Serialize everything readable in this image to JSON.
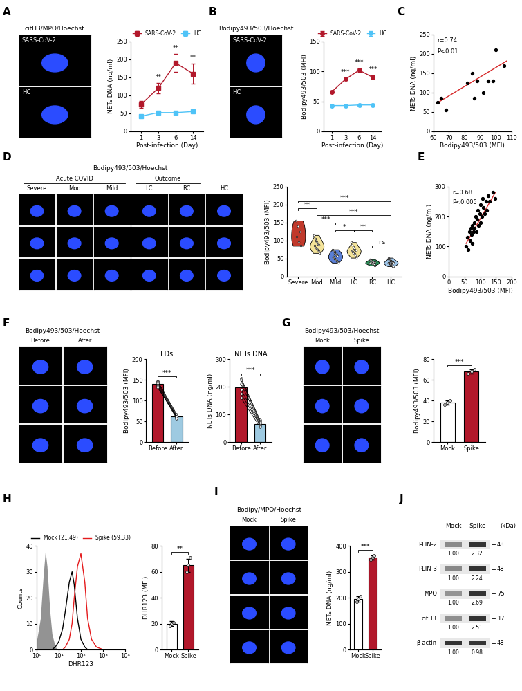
{
  "chart_data": [
    {
      "type": "image",
      "panel": "A",
      "title": "citH3/MPO/Hoechst",
      "labels": [
        "SARS-CoV-2",
        "HC"
      ]
    },
    {
      "type": "line",
      "categories": [
        "1",
        "3",
        "6",
        "14"
      ],
      "xlabel": "Post-infection (Day)",
      "ylabel": "NETs DNA (ng/ml)",
      "ylim": [
        0,
        250
      ],
      "yticks": [
        0,
        50,
        100,
        150,
        200,
        250
      ],
      "legend": "upper center",
      "series": [
        {
          "name": "SARS-CoV-2",
          "color": "#b2182b",
          "marker": "square",
          "values": [
            75,
            120,
            190,
            160
          ],
          "errors": [
            10,
            15,
            25,
            28
          ]
        },
        {
          "name": "HC",
          "color": "#4fc3f7",
          "marker": "square",
          "values": [
            42,
            52,
            52,
            55
          ],
          "errors": [
            4,
            3,
            3,
            3
          ]
        }
      ],
      "annotations": [
        {
          "x": "3",
          "text": "**"
        },
        {
          "x": "6",
          "text": "**"
        },
        {
          "x": "14",
          "text": "**"
        }
      ]
    },
    {
      "type": "image",
      "panel": "B",
      "title": "Bodipy493/503/Hoechst",
      "labels": [
        "SARS-CoV-2",
        "HC"
      ]
    },
    {
      "type": "line",
      "categories": [
        "1",
        "3",
        "6",
        "14"
      ],
      "xlabel": "Post-infection (Day)",
      "ylabel": "Bodipy493/503 (MFI)",
      "ylim": [
        0,
        150
      ],
      "yticks": [
        0,
        50,
        100,
        150
      ],
      "legend": "upper center",
      "series": [
        {
          "name": "SARS-CoV-2",
          "color": "#b2182b",
          "marker": "circle",
          "values": [
            66,
            87,
            102,
            90
          ],
          "errors": [
            2,
            2,
            3,
            3
          ]
        },
        {
          "name": "HC",
          "color": "#4fc3f7",
          "marker": "circle",
          "values": [
            43,
            43,
            44,
            44
          ],
          "errors": [
            1,
            1,
            1,
            2
          ]
        }
      ],
      "annotations": [
        {
          "x": "3",
          "text": "***"
        },
        {
          "x": "6",
          "text": "***"
        },
        {
          "x": "14",
          "text": "***"
        }
      ]
    },
    {
      "type": "scatter",
      "panel": "C",
      "x": [
        63,
        65,
        68,
        82,
        85,
        86,
        88,
        92,
        95,
        98,
        100,
        105
      ],
      "values": [
        75,
        85,
        55,
        125,
        150,
        85,
        130,
        100,
        130,
        130,
        210,
        170
      ],
      "color": "#000000",
      "trend": {
        "x": [
          62,
          107
        ],
        "y": [
          72,
          182
        ],
        "color": "#d62728"
      },
      "annotations": [
        "r=0.74",
        "P<0.01"
      ],
      "xlabel": "Bodipy493/503 (MFI)",
      "ylabel": "NETs DNA (ng/ml)",
      "xlim": [
        60,
        110
      ],
      "xticks": [
        60,
        70,
        80,
        90,
        100,
        110
      ],
      "ylim": [
        0,
        250
      ],
      "yticks": [
        0,
        50,
        100,
        150,
        200,
        250
      ]
    },
    {
      "type": "image",
      "panel": "D",
      "title": "Bodipy493/503/Hoechst",
      "groups": [
        "Acute COVID",
        "Outcome"
      ],
      "labels": [
        "Severe",
        "Mod",
        "Mild",
        "LC",
        "RC",
        "HC"
      ]
    },
    {
      "type": "violin",
      "categories": [
        "Severe",
        "Mod",
        "Mild",
        "LC",
        "RC",
        "HC"
      ],
      "ylabel": "Bodipy493/503 (MFI)",
      "ylim": [
        0,
        250
      ],
      "yticks": [
        0,
        50,
        100,
        150,
        200,
        250
      ],
      "colors": [
        "#c0392b",
        "#f3e39a",
        "#5a7fd6",
        "#f3e39a",
        "#2e8b57",
        "#9fc5e8"
      ],
      "points": [
        [
          155,
          140,
          125,
          110,
          95,
          85
        ],
        [
          115,
          105,
          100,
          95,
          90,
          88,
          85,
          80,
          78,
          75,
          70,
          65
        ],
        [
          75,
          72,
          70,
          68,
          65,
          63,
          62,
          60,
          58,
          57,
          55,
          54,
          52,
          50,
          48,
          47,
          45,
          43,
          40,
          38
        ],
        [
          95,
          88,
          82,
          78,
          75,
          72,
          70,
          68,
          65,
          62,
          58,
          52
        ],
        [
          48,
          45,
          43,
          42,
          40,
          39,
          38,
          37,
          36,
          35,
          33,
          30
        ],
        [
          52,
          50,
          48,
          46,
          45,
          44,
          43,
          42,
          41,
          40,
          40,
          39,
          38,
          38,
          37,
          36,
          35,
          35,
          34,
          33,
          32,
          31,
          30,
          29,
          28
        ]
      ],
      "brackets": [
        {
          "between": [
            "Severe",
            "Mod"
          ],
          "text": "**"
        },
        {
          "between": [
            "Mod",
            "Mild"
          ],
          "text": "***"
        },
        {
          "between": [
            "Mild",
            "LC"
          ],
          "text": "*"
        },
        {
          "between": [
            "LC",
            "RC"
          ],
          "text": "**"
        },
        {
          "between": [
            "RC",
            "HC"
          ],
          "text": "ns"
        },
        {
          "between": [
            "Mod",
            "HC"
          ],
          "text": "***"
        },
        {
          "between": [
            "Severe",
            "HC"
          ],
          "text": "***"
        }
      ]
    },
    {
      "type": "scatter",
      "panel": "E",
      "x": [
        55,
        60,
        62,
        65,
        68,
        70,
        72,
        75,
        75,
        78,
        80,
        82,
        85,
        88,
        90,
        92,
        95,
        98,
        100,
        100,
        105,
        108,
        110,
        115,
        118,
        120,
        125,
        130,
        140,
        148
      ],
      "values": [
        100,
        130,
        90,
        150,
        120,
        160,
        140,
        110,
        170,
        150,
        180,
        160,
        200,
        150,
        190,
        220,
        170,
        210,
        240,
        180,
        200,
        260,
        230,
        210,
        250,
        220,
        270,
        250,
        280,
        260
      ],
      "color": "#000000",
      "trend": {
        "x": [
          55,
          148
        ],
        "y": [
          110,
          280
        ],
        "color": "#d62728"
      },
      "annotations": [
        "r=0.68",
        "P<0.005"
      ],
      "xlabel": "Bodipy493/503 (MFI)",
      "ylabel": "NETs DNA (ng/ml)",
      "xlim": [
        0,
        200
      ],
      "xticks": [
        0,
        50,
        100,
        150,
        200
      ],
      "ylim": [
        0,
        300
      ],
      "yticks": [
        0,
        100,
        200,
        300
      ]
    },
    {
      "type": "image",
      "panel": "F",
      "title": "Bodipy493/503/Hoechst",
      "labels": [
        "Before",
        "After"
      ]
    },
    {
      "type": "paired",
      "title": "LDs",
      "categories": [
        "Before",
        "After"
      ],
      "values": [
        140,
        63
      ],
      "colors": [
        "#b2182b",
        "#9ecae1"
      ],
      "points": [
        [
          148,
          145,
          142,
          138,
          135,
          132
        ],
        [
          68,
          65,
          62,
          60,
          58,
          63
        ]
      ],
      "ylabel": "Bodipy493/503 (MFI)",
      "ylim": [
        0,
        200
      ],
      "yticks": [
        0,
        50,
        100,
        150,
        200
      ],
      "brackets": [
        {
          "between": [
            "Before",
            "After"
          ],
          "text": "***"
        }
      ]
    },
    {
      "type": "paired",
      "title": "NETs DNA",
      "categories": [
        "Before",
        "After"
      ],
      "values": [
        198,
        67
      ],
      "colors": [
        "#b2182b",
        "#9ecae1"
      ],
      "points": [
        [
          232,
          225,
          210,
          190,
          175,
          160
        ],
        [
          80,
          75,
          70,
          65,
          62,
          55
        ]
      ],
      "ylabel": "NETs DNA (ng/ml)",
      "ylim": [
        0,
        300
      ],
      "yticks": [
        0,
        100,
        200,
        300
      ],
      "brackets": [
        {
          "between": [
            "Before",
            "After"
          ],
          "text": "***"
        }
      ]
    },
    {
      "type": "image",
      "panel": "G",
      "title": "Bodipy493/503/Hoechst",
      "labels": [
        "Mock",
        "Spike"
      ]
    },
    {
      "type": "bar",
      "categories": [
        "Mock",
        "Spike"
      ],
      "values": [
        38,
        68
      ],
      "errors": [
        2,
        2
      ],
      "colors": [
        "#ffffff",
        "#b2182b"
      ],
      "points": [
        [
          36,
          38,
          40
        ],
        [
          66,
          68,
          70
        ]
      ],
      "ylabel": "Bodipy493/503 (MFI)",
      "ylim": [
        0,
        80
      ],
      "yticks": [
        0,
        20,
        40,
        60,
        80
      ],
      "brackets": [
        {
          "between": [
            "Mock",
            "Spike"
          ],
          "text": "***"
        }
      ]
    },
    {
      "type": "line",
      "panel": "H",
      "log": "x",
      "x": [
        1,
        1.5,
        2,
        2.5,
        3,
        4,
        5,
        7,
        10,
        15,
        20,
        30,
        40,
        50,
        70,
        100,
        150,
        200,
        300,
        500,
        1000
      ],
      "xlabel": "DHR123",
      "ylabel": "Counts",
      "xlim": [
        1,
        10000
      ],
      "xticks": [
        {
          "value": 1,
          "label": "10⁰"
        },
        {
          "value": 10,
          "label": "10¹"
        },
        {
          "value": 100,
          "label": "10²"
        },
        {
          "value": 1000,
          "label": "10³"
        },
        {
          "value": 10000,
          "label": "10⁴"
        }
      ],
      "ylim": [
        0,
        40
      ],
      "yticks": [
        0,
        10,
        20,
        30,
        40
      ],
      "legend": "upper center",
      "series": [
        {
          "color": "#808080",
          "type": "area",
          "values": [
            3,
            12,
            28,
            38,
            32,
            15,
            6,
            1,
            0,
            0,
            0,
            0,
            0,
            0,
            0,
            0,
            0,
            0,
            0,
            0,
            0
          ]
        },
        {
          "name": "Mock (21.49)",
          "color": "#000000",
          "values": [
            0,
            0,
            0,
            0,
            0,
            0,
            0,
            1,
            3,
            8,
            15,
            26,
            30,
            25,
            12,
            4,
            1,
            0,
            0,
            0,
            0
          ]
        },
        {
          "name": "Spike (59.33)",
          "color": "#e41a1c",
          "values": [
            0,
            0,
            0,
            0,
            0,
            0,
            0,
            0,
            0,
            0,
            1,
            4,
            10,
            20,
            32,
            37,
            26,
            12,
            4,
            1,
            0
          ]
        }
      ]
    },
    {
      "type": "bar",
      "categories": [
        "Mock",
        "Spike"
      ],
      "values": [
        20,
        65
      ],
      "errors": [
        2,
        5
      ],
      "colors": [
        "#ffffff",
        "#b2182b"
      ],
      "points": [
        [
          18,
          20,
          21
        ],
        [
          60,
          65,
          71
        ]
      ],
      "ylabel": "DHR123 (MFI)",
      "ylim": [
        0,
        80
      ],
      "yticks": [
        0,
        20,
        40,
        60,
        80
      ],
      "brackets": [
        {
          "between": [
            "Mock",
            "Spike"
          ],
          "text": "**"
        }
      ]
    },
    {
      "type": "image",
      "panel": "I",
      "title": "Bodipy/MPO/Hoechst",
      "labels": [
        "Mock",
        "Spike"
      ]
    },
    {
      "type": "bar",
      "categories": [
        "Mock",
        "Spike"
      ],
      "values": [
        195,
        355
      ],
      "errors": [
        10,
        8
      ],
      "colors": [
        "#ffffff",
        "#b2182b"
      ],
      "points": [
        [
          185,
          195,
          205
        ],
        [
          348,
          355,
          362
        ]
      ],
      "ylabel": "NETs DNA (ng/ml)",
      "ylim": [
        0,
        400
      ],
      "yticks": [
        0,
        100,
        200,
        300,
        400
      ],
      "brackets": [
        {
          "between": [
            "Mock",
            "Spike"
          ],
          "text": "***"
        }
      ]
    },
    {
      "type": "blot",
      "panel": "J",
      "columns": [
        "Mock",
        "Spike"
      ],
      "unit_label": "(kDa)",
      "rows": [
        {
          "name": "PLIN-2",
          "kda": 48,
          "values": [
            1.0,
            2.32
          ],
          "value_labels": [
            "1.00",
            "2.32"
          ]
        },
        {
          "name": "PLIN-3",
          "kda": 48,
          "values": [
            1.0,
            2.24
          ],
          "value_labels": [
            "1.00",
            "2.24"
          ]
        },
        {
          "name": "MPO",
          "kda": 75,
          "values": [
            1.0,
            2.69
          ],
          "value_labels": [
            "1.00",
            "2.69"
          ]
        },
        {
          "name": "citH3",
          "kda": 17,
          "values": [
            1.0,
            2.51
          ],
          "value_labels": [
            "1.00",
            "2.51"
          ]
        },
        {
          "name": "β-actin",
          "kda": 48,
          "values": [
            1.0,
            0.98
          ],
          "value_labels": [
            "1.00",
            "0.98"
          ]
        }
      ]
    }
  ]
}
